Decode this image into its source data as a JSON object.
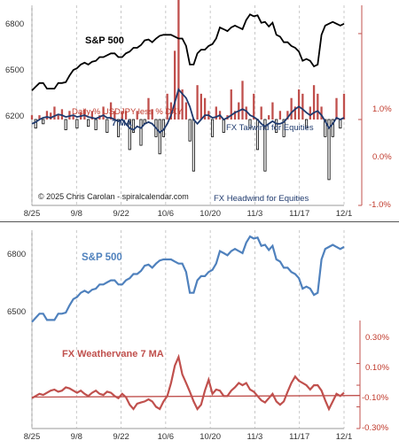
{
  "chart_data": [
    {
      "type": "line+bar",
      "panel": "top",
      "x_tick_labels": [
        "8/25",
        "9/8",
        "9/22",
        "10/6",
        "10/20",
        "11/3",
        "11/17",
        "12/1"
      ],
      "left_axis_ticks": [
        "6800",
        "6500",
        "6200"
      ],
      "right_axis_ticks": [
        "1.0%",
        "0.0%",
        "-1.0%"
      ],
      "left_ylim": [
        5850,
        6900
      ],
      "right_ylim": [
        -1.0,
        1.35
      ],
      "annotations": {
        "sp_label": "S&P 500",
        "fx_label": "Daily % USDJPY less % DXY",
        "ma_label": "7 MA",
        "tailwind": "FX Tailwind for Equities",
        "headwind": "FX Headwind for Equities",
        "copyright": "© 2025 Chris Carolan - spiralcalendar.com"
      },
      "series": [
        {
          "name": "S&P 500",
          "color": "#000000",
          "values": [
            6460,
            6480,
            6500,
            6500,
            6470,
            6470,
            6470,
            6500,
            6500,
            6505,
            6540,
            6570,
            6580,
            6600,
            6610,
            6600,
            6615,
            6620,
            6640,
            6640,
            6650,
            6660,
            6660,
            6640,
            6640,
            6660,
            6670,
            6690,
            6690,
            6705,
            6730,
            6735,
            6720,
            6740,
            6755,
            6760,
            6760,
            6760,
            6750,
            6740,
            6740,
            6700,
            6600,
            6600,
            6660,
            6680,
            6680,
            6700,
            6710,
            6740,
            6800,
            6790,
            6780,
            6800,
            6810,
            6800,
            6790,
            6840,
            6870,
            6860,
            6865,
            6825,
            6830,
            6805,
            6825,
            6760,
            6750,
            6720,
            6720,
            6700,
            6690,
            6670,
            6620,
            6630,
            6620,
            6590,
            6600,
            6760,
            6810,
            6820,
            6830,
            6820,
            6810,
            6820
          ]
        },
        {
          "name": "Daily % USDJPY less % DXY",
          "color": "#c0504d",
          "values": [
            0.05,
            -0.1,
            0.05,
            -0.05,
            0.1,
            0.08,
            0.15,
            0.05,
            0.12,
            -0.12,
            0.1,
            0.05,
            -0.1,
            0.08,
            0.12,
            -0.08,
            0.1,
            -0.12,
            0.05,
            0.15,
            -0.15,
            0.2,
            0.1,
            -0.2,
            0.1,
            0.1,
            -0.35,
            -0.15,
            0.1,
            -0.3,
            -0.05,
            0.25,
            0.12,
            -0.2,
            -0.4,
            -0.2,
            0.3,
            0.2,
            0.8,
            1.5,
            0.35,
            0.2,
            -0.25,
            -0.6,
            0.4,
            0.3,
            0.25,
            0.1,
            -0.2,
            0.15,
            0.1,
            -0.15,
            0.05,
            0.35,
            0.1,
            0.2,
            0.45,
            0.15,
            -0.1,
            0.3,
            -0.35,
            0.15,
            -0.6,
            0.05,
            0.2,
            -0.15,
            0.1,
            -0.2,
            0.1,
            0.25,
            0.15,
            0.35,
            0.3,
            -0.1,
            0.15,
            0.4,
            0.3,
            0.15,
            -0.2,
            -0.7,
            -0.2,
            0.25,
            -0.1,
            0.3
          ]
        },
        {
          "name": "7 MA",
          "color": "#1f3a6e",
          "values": [
            -0.05,
            -0.03,
            0.0,
            0.02,
            0.03,
            0.02,
            0.04,
            0.06,
            0.05,
            0.03,
            0.04,
            0.05,
            0.03,
            0.04,
            0.05,
            0.03,
            0.02,
            0.01,
            0.03,
            0.05,
            0.02,
            0.02,
            0.0,
            -0.02,
            0.0,
            -0.05,
            -0.1,
            -0.12,
            -0.08,
            -0.1,
            -0.05,
            -0.03,
            -0.05,
            -0.1,
            -0.15,
            -0.12,
            -0.05,
            0.05,
            0.2,
            0.35,
            0.3,
            0.25,
            0.15,
            0.0,
            -0.05,
            0.0,
            0.05,
            0.05,
            0.02,
            0.03,
            0.05,
            0.0,
            0.02,
            0.05,
            0.08,
            0.1,
            0.12,
            0.1,
            0.05,
            0.03,
            0.0,
            -0.05,
            -0.08,
            -0.05,
            -0.02,
            -0.05,
            -0.05,
            -0.03,
            0.02,
            0.08,
            0.12,
            0.15,
            0.12,
            0.08,
            0.05,
            0.08,
            0.1,
            0.05,
            -0.02,
            -0.1,
            -0.05,
            0.02,
            0.0,
            0.02
          ]
        }
      ]
    },
    {
      "type": "line",
      "panel": "bottom",
      "x_tick_labels": [
        "8/25",
        "9/8",
        "9/22",
        "10/6",
        "10/20",
        "11/3",
        "11/17",
        "12/1"
      ],
      "left_axis_ticks": [
        "6800",
        "6500"
      ],
      "right_axis_ticks": [
        "0.30%",
        "0.10%",
        "-0.10%",
        "-0.30%"
      ],
      "left_ylim": [
        5950,
        6900
      ],
      "right_ylim": [
        -0.3,
        0.55
      ],
      "annotations": {
        "sp_label": "S&P 500",
        "fx_label": "FX Weathervane 7 MA"
      },
      "series": [
        {
          "name": "S&P 500",
          "color": "#4f81bd",
          "values": [
            6460,
            6480,
            6500,
            6500,
            6470,
            6470,
            6470,
            6500,
            6500,
            6505,
            6540,
            6570,
            6580,
            6600,
            6610,
            6600,
            6615,
            6620,
            6640,
            6640,
            6650,
            6660,
            6660,
            6640,
            6640,
            6660,
            6670,
            6690,
            6690,
            6705,
            6730,
            6735,
            6720,
            6740,
            6755,
            6760,
            6760,
            6760,
            6750,
            6740,
            6740,
            6700,
            6600,
            6600,
            6660,
            6680,
            6680,
            6700,
            6710,
            6740,
            6800,
            6790,
            6780,
            6800,
            6810,
            6800,
            6790,
            6840,
            6870,
            6860,
            6865,
            6825,
            6830,
            6805,
            6825,
            6760,
            6750,
            6720,
            6720,
            6700,
            6690,
            6670,
            6620,
            6630,
            6620,
            6590,
            6600,
            6760,
            6810,
            6820,
            6830,
            6820,
            6810,
            6820
          ]
        },
        {
          "name": "FX Weathervane 7 MA",
          "color": "#c0504d",
          "values": [
            -0.02,
            0.0,
            0.02,
            0.01,
            0.03,
            0.05,
            0.06,
            0.04,
            0.05,
            0.08,
            0.07,
            0.05,
            0.03,
            0.05,
            0.02,
            0.0,
            0.03,
            0.05,
            0.02,
            0.01,
            0.04,
            0.03,
            0.0,
            -0.02,
            0.02,
            -0.01,
            -0.08,
            -0.12,
            -0.07,
            -0.06,
            -0.05,
            -0.03,
            -0.05,
            -0.1,
            -0.12,
            -0.05,
            0.0,
            0.12,
            0.28,
            0.36,
            0.2,
            0.12,
            0.04,
            -0.05,
            -0.12,
            -0.08,
            0.05,
            0.15,
            0.02,
            0.06,
            0.05,
            0.0,
            0.0,
            0.05,
            0.08,
            0.12,
            0.1,
            0.12,
            0.06,
            0.04,
            0.0,
            -0.04,
            -0.06,
            -0.02,
            0.02,
            -0.05,
            -0.08,
            -0.05,
            0.04,
            0.12,
            0.18,
            0.14,
            0.12,
            0.1,
            0.06,
            0.1,
            0.1,
            0.05,
            -0.04,
            -0.12,
            -0.05,
            0.02,
            0.0,
            0.03
          ]
        },
        {
          "name": "baseline",
          "color": "#c0504d",
          "values": [
            -0.01,
            0.005
          ]
        }
      ]
    }
  ]
}
